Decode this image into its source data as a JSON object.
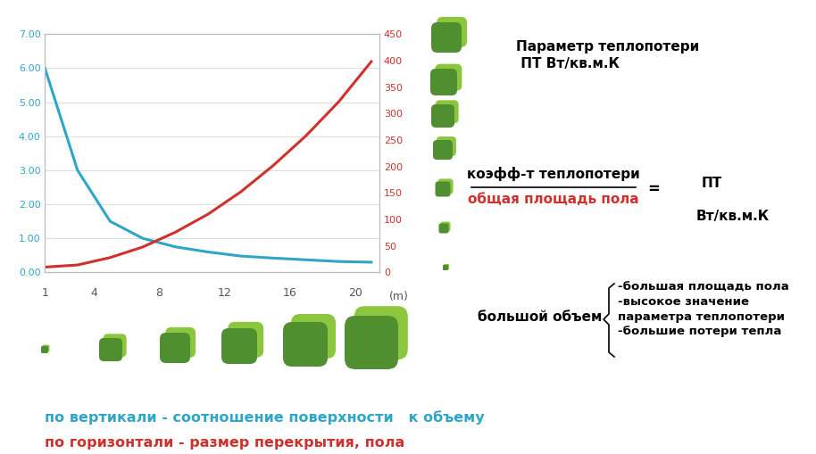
{
  "chart_data": {
    "type": "line",
    "x": [
      1,
      3,
      5,
      7,
      9,
      11,
      13,
      15,
      17,
      19,
      21
    ],
    "xlim": [
      1,
      21.5
    ],
    "xticks": [
      1,
      4,
      8,
      12,
      16,
      20
    ],
    "xlabel": "(m)",
    "ylim": [
      0,
      7
    ],
    "yticks": [
      {
        "value": 0,
        "label": "0.00"
      },
      {
        "value": 1,
        "label": "1.00"
      },
      {
        "value": 2,
        "label": "2.00"
      },
      {
        "value": 3,
        "label": "3.00"
      },
      {
        "value": 4,
        "label": "4.00"
      },
      {
        "value": 5,
        "label": "5.00"
      },
      {
        "value": 6,
        "label": "6.00"
      },
      {
        "value": 7,
        "label": "7.00"
      }
    ],
    "y2lim": [
      0,
      450
    ],
    "y2ticks": [
      0,
      50,
      100,
      150,
      200,
      250,
      300,
      350,
      400,
      450
    ],
    "grid": true,
    "series": [
      {
        "color": "#2fa6c8",
        "line_style": "solid",
        "values": [
          6.0,
          3.0,
          1.5,
          1.0,
          0.75,
          0.6,
          0.48,
          0.42,
          0.37,
          0.32,
          0.3
        ]
      },
      {
        "color": "#d0312d",
        "line_style": "solid",
        "axis": "y2",
        "values": [
          10,
          14,
          28,
          48,
          76,
          110,
          152,
          202,
          258,
          322,
          398
        ]
      }
    ],
    "annotations": {
      "heat_loss_parameter": {
        "text": "Параметр теплопотери\n ПТ Вт/кв.м.К",
        "color": "#000000"
      },
      "formula": {
        "numerator": {
          "text": "коэфф-т теплопотери",
          "color": "#000000"
        },
        "denominator": {
          "text": "общая площадь пола",
          "color": "#d0312d"
        },
        "equals": {
          "text": "=",
          "color": "#000000"
        },
        "result": {
          "text": "ПТ",
          "color": "#000000"
        },
        "result_unit": {
          "text": "Вт/кв.м.К",
          "color": "#000000"
        }
      },
      "large_volume": {
        "label": {
          "text": "большой объем",
          "color": "#000000"
        },
        "items": [
          "-большая площадь пола",
          "-высокое значение\nпараметра теплопотери",
          "-большие потери тепла"
        ]
      },
      "axis_notes": [
        {
          "text": "по вертикали - соотношение поверхности   к объему",
          "color": "#2fa6c8"
        },
        {
          "text": "по горизонтали - размер перекрытия, пола",
          "color": "#d0312d"
        }
      ]
    }
  }
}
